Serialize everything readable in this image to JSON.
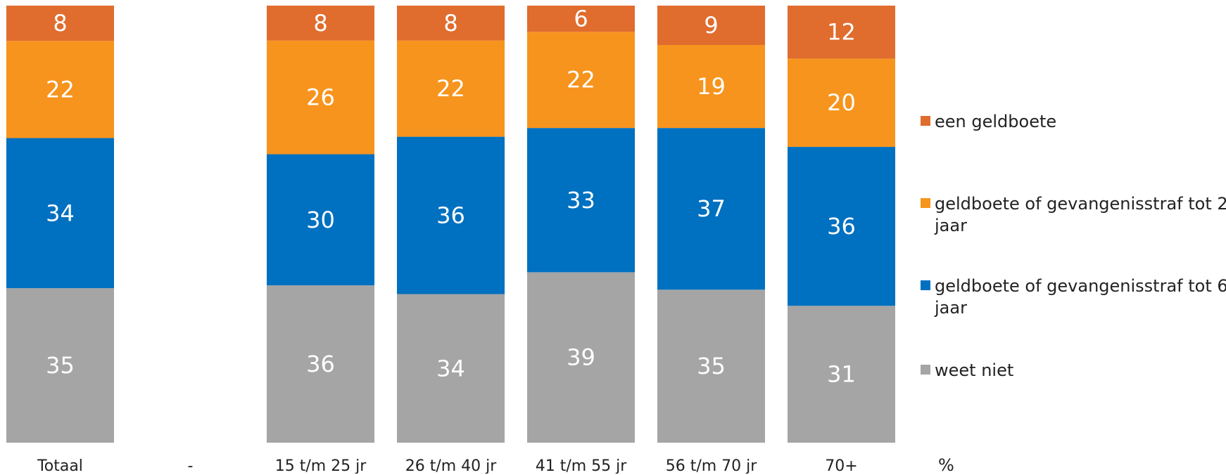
{
  "chart_data": {
    "type": "bar",
    "stacked": true,
    "percent": true,
    "categories": [
      "Totaal",
      "-",
      "15 t/m 25 jr",
      "26 t/m 40 jr",
      "41 t/m 55 jr",
      "56 t/m 70 jr",
      "70+"
    ],
    "series": [
      {
        "name": "weet niet",
        "color": "#a5a5a5",
        "values": [
          35,
          null,
          36,
          34,
          39,
          35,
          31
        ]
      },
      {
        "name": "geldboete of gevangenisstraf tot 6 jaar",
        "color": "#0070c0",
        "values": [
          34,
          null,
          30,
          36,
          33,
          37,
          36
        ]
      },
      {
        "name": "geldboete of gevangenisstraf tot 2 jaar",
        "color": "#f7941d",
        "values": [
          22,
          null,
          26,
          22,
          22,
          19,
          20
        ]
      },
      {
        "name": "een geldboete",
        "color": "#e06c2e",
        "values": [
          8,
          null,
          8,
          8,
          6,
          9,
          12
        ]
      }
    ],
    "legend_order": [
      "een geldboete",
      "geldboete of gevangenisstraf tot 2 jaar",
      "geldboete of gevangenisstraf tot 6 jaar",
      "weet niet"
    ],
    "legend_position": "right",
    "unit_label": "%",
    "grid": false
  }
}
